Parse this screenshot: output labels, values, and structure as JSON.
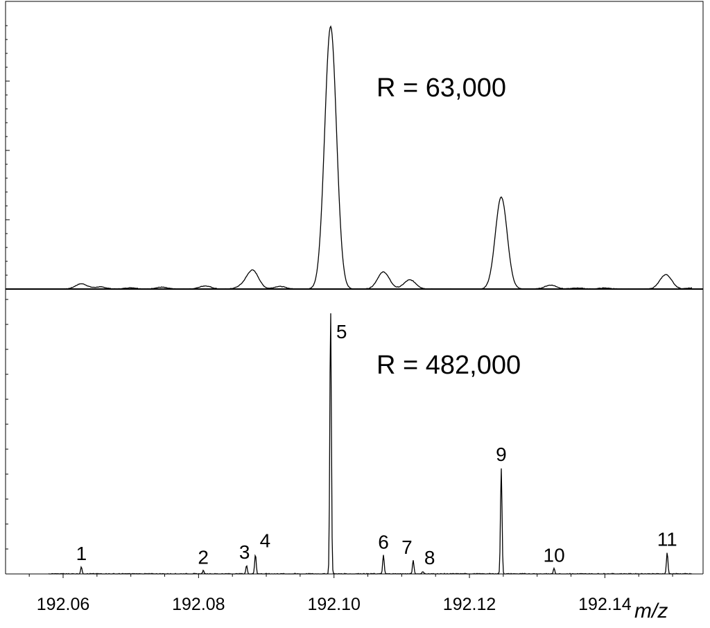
{
  "chart_data": [
    {
      "type": "line",
      "panel": "top",
      "annotation": "R = 63,000",
      "xlim": [
        192.0515,
        192.1545
      ],
      "ylim": [
        0,
        1.0
      ],
      "peaks": [
        {
          "mz": 192.0627,
          "height": 0.02
        },
        {
          "mz": 192.0655,
          "height": 0.008
        },
        {
          "mz": 192.07,
          "height": 0.005
        },
        {
          "mz": 192.0745,
          "height": 0.007
        },
        {
          "mz": 192.081,
          "height": 0.012
        },
        {
          "mz": 192.0865,
          "height": 0.01
        },
        {
          "mz": 192.088,
          "height": 0.07
        },
        {
          "mz": 192.092,
          "height": 0.01
        },
        {
          "mz": 192.0995,
          "height": 1.0
        },
        {
          "mz": 192.1073,
          "height": 0.065
        },
        {
          "mz": 192.1112,
          "height": 0.035
        },
        {
          "mz": 192.1247,
          "height": 0.35
        },
        {
          "mz": 192.132,
          "height": 0.015
        },
        {
          "mz": 192.136,
          "height": 0.004
        },
        {
          "mz": 192.14,
          "height": 0.004
        },
        {
          "mz": 192.149,
          "height": 0.055
        },
        {
          "mz": 192.153,
          "height": 0.004
        }
      ]
    },
    {
      "type": "line",
      "panel": "bottom",
      "annotation": "R = 482,000",
      "xlim": [
        192.0515,
        192.1545
      ],
      "ylim": [
        0,
        1.0
      ],
      "peaks": [
        {
          "label": "1",
          "mz": 192.0627,
          "height": 0.026
        },
        {
          "label": "2",
          "mz": 192.0807,
          "height": 0.012
        },
        {
          "label": "3",
          "mz": 192.0871,
          "height": 0.032
        },
        {
          "label": "4",
          "mz": 192.0884,
          "height": 0.075
        },
        {
          "label": "5",
          "mz": 192.0995,
          "height": 1.0
        },
        {
          "label": "6",
          "mz": 192.1073,
          "height": 0.07
        },
        {
          "label": "7",
          "mz": 192.1117,
          "height": 0.05
        },
        {
          "label": "8",
          "mz": 192.1131,
          "height": 0.01
        },
        {
          "label": "9",
          "mz": 192.1247,
          "height": 0.4
        },
        {
          "label": "10",
          "mz": 192.1325,
          "height": 0.02
        },
        {
          "label": "11",
          "mz": 192.1492,
          "height": 0.08
        }
      ],
      "xticks": [
        {
          "value": 192.06,
          "label": "192.06"
        },
        {
          "value": 192.08,
          "label": "192.08"
        },
        {
          "value": 192.1,
          "label": "192.10"
        },
        {
          "value": 192.12,
          "label": "192.12"
        },
        {
          "value": 192.14,
          "label": "192.14"
        }
      ],
      "xlabel": "m/z"
    }
  ]
}
